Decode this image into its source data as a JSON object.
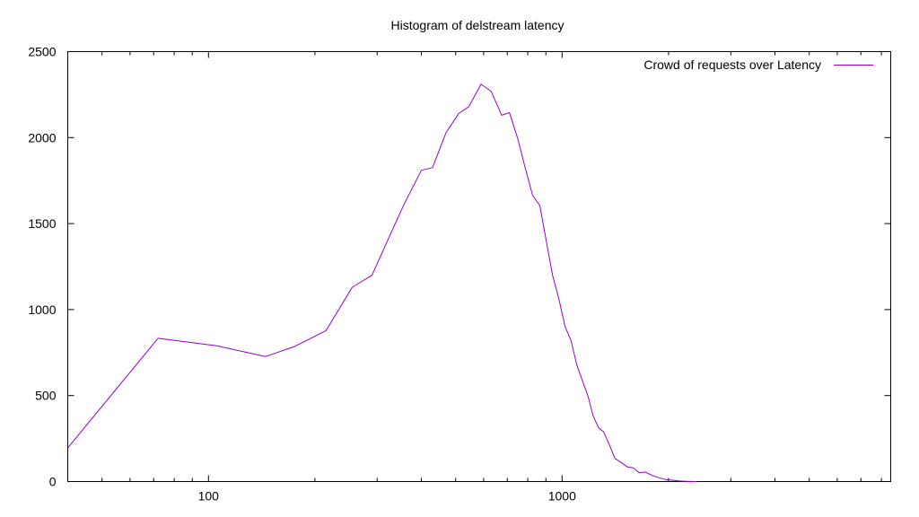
{
  "chart_data": {
    "type": "line",
    "title": "Histogram of delstream latency",
    "xlabel": "",
    "ylabel": "",
    "xscale": "log",
    "xlim": [
      40,
      8500
    ],
    "ylim": [
      0,
      2500
    ],
    "x_ticks": [
      {
        "value": 100,
        "label": "100"
      },
      {
        "value": 1000,
        "label": "1000"
      }
    ],
    "y_ticks": [
      {
        "value": 0,
        "label": "0"
      },
      {
        "value": 500,
        "label": "500"
      },
      {
        "value": 1000,
        "label": "1000"
      },
      {
        "value": 1500,
        "label": "1500"
      },
      {
        "value": 2000,
        "label": "2000"
      },
      {
        "value": 2500,
        "label": "2500"
      }
    ],
    "grid": false,
    "legend_position": "top-right",
    "series": [
      {
        "name": "Crowd of requests over Latency",
        "color": "#9400d3",
        "points": [
          [
            40,
            195
          ],
          [
            72,
            833
          ],
          [
            105,
            790
          ],
          [
            145,
            727
          ],
          [
            175,
            785
          ],
          [
            215,
            878
          ],
          [
            255,
            1130
          ],
          [
            290,
            1200
          ],
          [
            355,
            1600
          ],
          [
            400,
            1810
          ],
          [
            430,
            1825
          ],
          [
            470,
            2030
          ],
          [
            510,
            2140
          ],
          [
            545,
            2180
          ],
          [
            590,
            2310
          ],
          [
            630,
            2270
          ],
          [
            675,
            2130
          ],
          [
            710,
            2145
          ],
          [
            750,
            1990
          ],
          [
            785,
            1830
          ],
          [
            825,
            1665
          ],
          [
            865,
            1605
          ],
          [
            900,
            1410
          ],
          [
            940,
            1200
          ],
          [
            980,
            1060
          ],
          [
            1020,
            900
          ],
          [
            1060,
            820
          ],
          [
            1100,
            680
          ],
          [
            1140,
            590
          ],
          [
            1185,
            495
          ],
          [
            1225,
            380
          ],
          [
            1270,
            310
          ],
          [
            1310,
            290
          ],
          [
            1360,
            215
          ],
          [
            1410,
            135
          ],
          [
            1470,
            110
          ],
          [
            1530,
            85
          ],
          [
            1590,
            80
          ],
          [
            1650,
            52
          ],
          [
            1720,
            55
          ],
          [
            1800,
            35
          ],
          [
            1880,
            22
          ],
          [
            1960,
            12
          ],
          [
            2050,
            8
          ],
          [
            2150,
            3
          ],
          [
            2260,
            1
          ],
          [
            2400,
            0
          ]
        ]
      }
    ]
  }
}
